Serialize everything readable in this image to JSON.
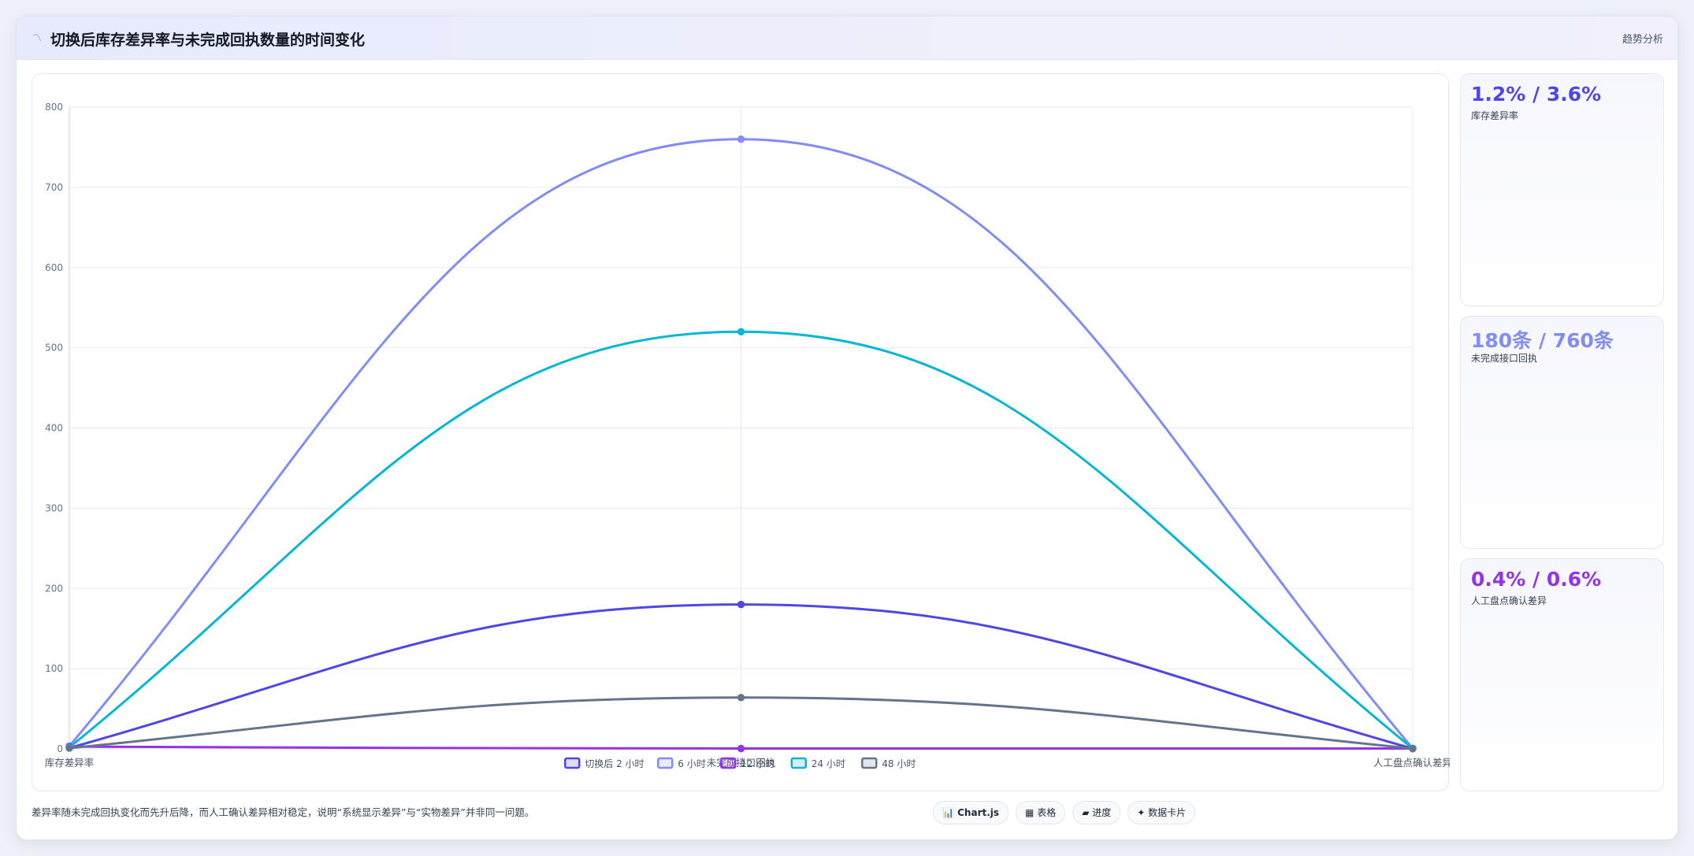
{
  "header": {
    "icon": "chart-trend-icon",
    "title": "切换后库存差异率与未完成回执数量的时间变化",
    "tag": "趋势分析"
  },
  "cards": [
    {
      "value": "1.2% / 3.6%",
      "label": "库存差异率",
      "color": "#4f46e5"
    },
    {
      "value": "180条 / 760条",
      "label": "未完成接口回执",
      "color": "#818cf8"
    },
    {
      "value": "0.4% / 0.6%",
      "label": "人工盘点确认差异",
      "color": "#9333ea"
    }
  ],
  "caption": "差异率随未完成回执变化而先升后降，而人工确认差异相对稳定，说明“系统显示差异”与“实物差异”并非同一问题。",
  "view_tabs": [
    {
      "label": "📊 Chart.js",
      "active": true
    },
    {
      "label": "▦ 表格",
      "active": false
    },
    {
      "label": "▰ 进度",
      "active": false
    },
    {
      "label": "✦ 数据卡片",
      "active": false
    }
  ],
  "chart_data": {
    "type": "line",
    "categories": [
      "库存差异率",
      "未完成接口回执",
      "人工盘点确认差异"
    ],
    "series": [
      {
        "name": "切换后 2 小时",
        "values": [
          1.2,
          180,
          0.4
        ],
        "color": "#4f46e5"
      },
      {
        "name": "6 小时",
        "values": [
          3.6,
          760,
          0.6
        ],
        "color": "#818cf8"
      },
      {
        "name": "12 小时",
        "values": [
          2.8,
          0.5,
          0.5
        ],
        "color": "#9333ea"
      },
      {
        "name": "24 小时",
        "values": [
          1.8,
          520,
          0.5
        ],
        "color": "#06b6d4"
      },
      {
        "name": "48 小时",
        "values": [
          0.9,
          64,
          0.4
        ],
        "color": "#64748b"
      }
    ],
    "ylim": [
      0,
      800
    ],
    "yticks": [
      0,
      100,
      200,
      300,
      400,
      500,
      600,
      700,
      800
    ],
    "grid": true,
    "legend": "bottom",
    "curve": "smooth"
  }
}
